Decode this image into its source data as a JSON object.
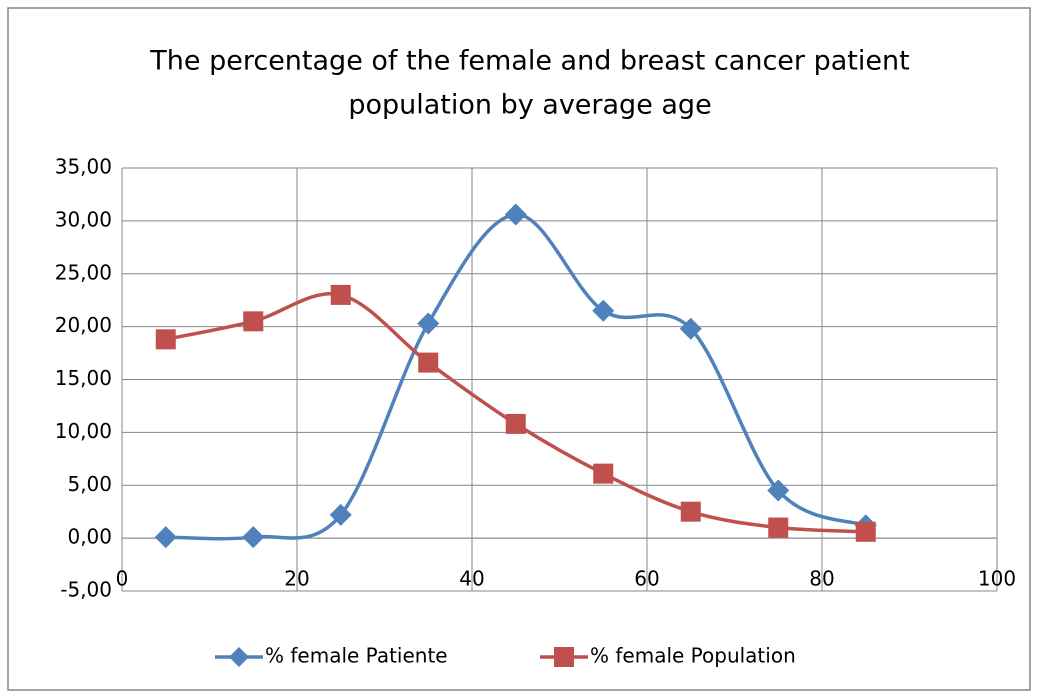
{
  "chart_data": {
    "type": "line",
    "title": [
      "The percentage of the female and breast cancer patient",
      "population by average age"
    ],
    "x": [
      5,
      15,
      25,
      35,
      45,
      55,
      65,
      75,
      85
    ],
    "series": [
      {
        "name": "% female Patiente",
        "color": "#4f81bd",
        "marker": "diamond",
        "values": [
          0.1,
          0.1,
          2.2,
          20.3,
          30.6,
          21.5,
          19.8,
          4.5,
          1.2
        ]
      },
      {
        "name": "% female Population",
        "color": "#c0504d",
        "marker": "square",
        "values": [
          18.8,
          20.5,
          23.0,
          16.6,
          10.8,
          6.1,
          2.5,
          1.0,
          0.6
        ]
      }
    ],
    "xlim": [
      0,
      100
    ],
    "xticks": [
      0,
      20,
      40,
      60,
      80,
      100
    ],
    "ylim": [
      -5,
      35
    ],
    "yticks": [
      {
        "value": 35,
        "label": "35,00"
      },
      {
        "value": 30,
        "label": "30,00"
      },
      {
        "value": 25,
        "label": "25,00"
      },
      {
        "value": 20,
        "label": "20,00"
      },
      {
        "value": 15,
        "label": "15,00"
      },
      {
        "value": 10,
        "label": "10,00"
      },
      {
        "value": 5,
        "label": "5,00"
      },
      {
        "value": 0,
        "label": "0,00"
      },
      {
        "value": -5,
        "label": "-5,00"
      }
    ],
    "grid": true,
    "smooth": true,
    "legend": "bottom"
  }
}
